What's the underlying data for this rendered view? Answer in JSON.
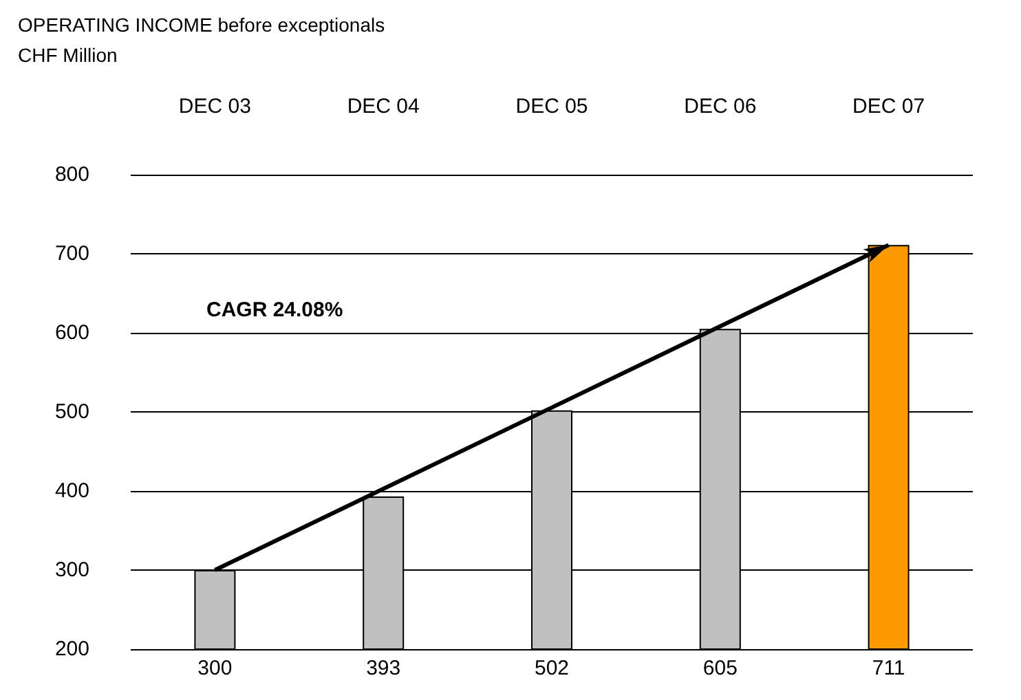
{
  "chart_data": {
    "type": "bar",
    "title": "OPERATING INCOME before exceptionals",
    "subtitle": "CHF Million",
    "categories": [
      "DEC 03",
      "DEC 04",
      "DEC 05",
      "DEC 06",
      "DEC 07"
    ],
    "values": [
      300,
      393,
      502,
      605,
      711
    ],
    "colors": [
      "#c0c0c0",
      "#c0c0c0",
      "#c0c0c0",
      "#c0c0c0",
      "#ff9900"
    ],
    "ylim": [
      200,
      800
    ],
    "yticks": [
      200,
      300,
      400,
      500,
      600,
      700,
      800
    ],
    "grid": "y",
    "data_labels": true,
    "annotations": [
      "CAGR 24.08%"
    ]
  }
}
